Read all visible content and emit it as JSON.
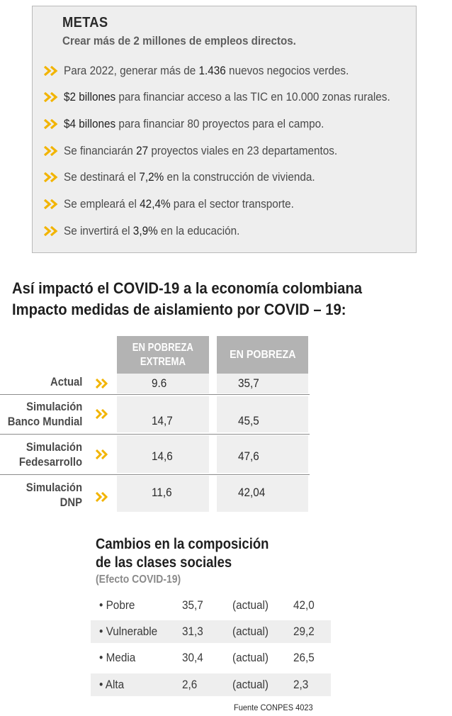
{
  "metas": {
    "title": "METAS",
    "subtitle": "Crear más de 2 millones de empleos directos.",
    "goals": [
      {
        "pre": "Para 2022, generar más de ",
        "bold": "1.436",
        "post": " nuevos negocios verdes."
      },
      {
        "pre": "",
        "bold": "$2 billones",
        "post": " para financiar acceso a las TIC en 10.000 zonas rurales."
      },
      {
        "pre": "",
        "bold": "$4 billones",
        "post": " para financiar 80 proyectos para el campo."
      },
      {
        "pre": "Se financiarán ",
        "bold": "27",
        "post": " proyectos viales en 23 departamentos."
      },
      {
        "pre": "Se destinará el ",
        "bold": "7,2%",
        "post": " en la construcción de vivienda."
      },
      {
        "pre": "Se empleará el ",
        "bold": "42,4%",
        "post": " para el sector transporte."
      },
      {
        "pre": "Se invertirá el ",
        "bold": "3,9%",
        "post": " en la educación."
      }
    ],
    "chevron_icon": "double-chevron-right-icon",
    "accent_color": "#f2b400"
  },
  "covid": {
    "heading_line1": "Así impactó el COVID-19 a la economía colombiana",
    "heading_line2": "Impacto medidas de aislamiento por COVID – 19:"
  },
  "poverty_table": {
    "col1_line1": "EN POBREZA",
    "col1_line2": "EXTREMA",
    "col2": "EN POBREZA",
    "rows": [
      {
        "label_line1": "",
        "label_line2": "Actual",
        "extrema": "9.6",
        "pobreza": "35,7"
      },
      {
        "label_line1": "Simulación",
        "label_line2": "Banco Mundial",
        "extrema": "14,7",
        "pobreza": "45,5"
      },
      {
        "label_line1": "Simulación",
        "label_line2": "Fedesarrollo",
        "extrema": "14,6",
        "pobreza": "47,6"
      },
      {
        "label_line1": "Simulación",
        "label_line2": "DNP",
        "extrema": "11,6",
        "pobreza": "42,04"
      }
    ]
  },
  "clases": {
    "title_line1": "Cambios en la composición",
    "title_line2": "de las clases sociales",
    "note": "(Efecto COVID-19)",
    "rows": [
      {
        "name": "• Pobre",
        "value": "35,7",
        "tag": "(actual)",
        "actual": "42,0"
      },
      {
        "name": "• Vulnerable",
        "value": "31,3",
        "tag": "(actual)",
        "actual": "29,2"
      },
      {
        "name": "• Media",
        "value": "30,4",
        "tag": "(actual)",
        "actual": "26,5"
      },
      {
        "name": "• Alta",
        "value": "2,6",
        "tag": "(actual)",
        "actual": "2,3"
      }
    ]
  },
  "source": "Fuente CONPES 4023"
}
